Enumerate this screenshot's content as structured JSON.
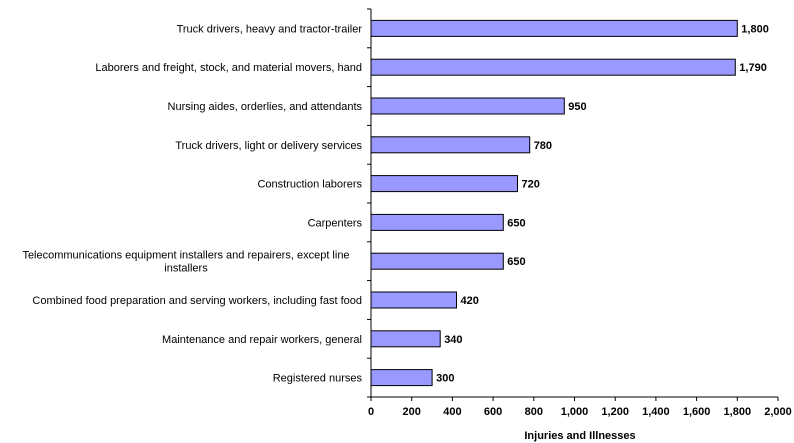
{
  "chart_data": {
    "type": "bar",
    "orientation": "horizontal",
    "title": "",
    "xlabel": "Injuries and Illnesses",
    "ylabel": "",
    "xlim": [
      0,
      2000
    ],
    "x_ticks": [
      0,
      200,
      400,
      600,
      800,
      1000,
      1200,
      1400,
      1600,
      1800,
      2000
    ],
    "x_tick_labels": [
      "0",
      "200",
      "400",
      "600",
      "800",
      "1,000",
      "1,200",
      "1,400",
      "1,600",
      "1,800",
      "2,000"
    ],
    "grid": false,
    "legend": "none",
    "bar_color": "#9999ff",
    "categories": [
      [
        "Truck drivers, heavy and tractor-trailer"
      ],
      [
        "Laborers and freight, stock, and material movers, hand"
      ],
      [
        "Nursing aides, orderlies, and attendants"
      ],
      [
        "Truck drivers, light or delivery services"
      ],
      [
        "Construction laborers"
      ],
      [
        "Carpenters"
      ],
      [
        "Telecommunications equipment installers and repairers, except line",
        "installers"
      ],
      [
        "Combined food preparation and serving workers, including fast food"
      ],
      [
        "Maintenance and repair workers, general"
      ],
      [
        "Registered nurses"
      ]
    ],
    "values": [
      1800,
      1790,
      950,
      780,
      720,
      650,
      650,
      420,
      340,
      300
    ],
    "value_labels": [
      "1,800",
      "1,790",
      "950",
      "780",
      "720",
      "650",
      "650",
      "420",
      "340",
      "300"
    ]
  }
}
